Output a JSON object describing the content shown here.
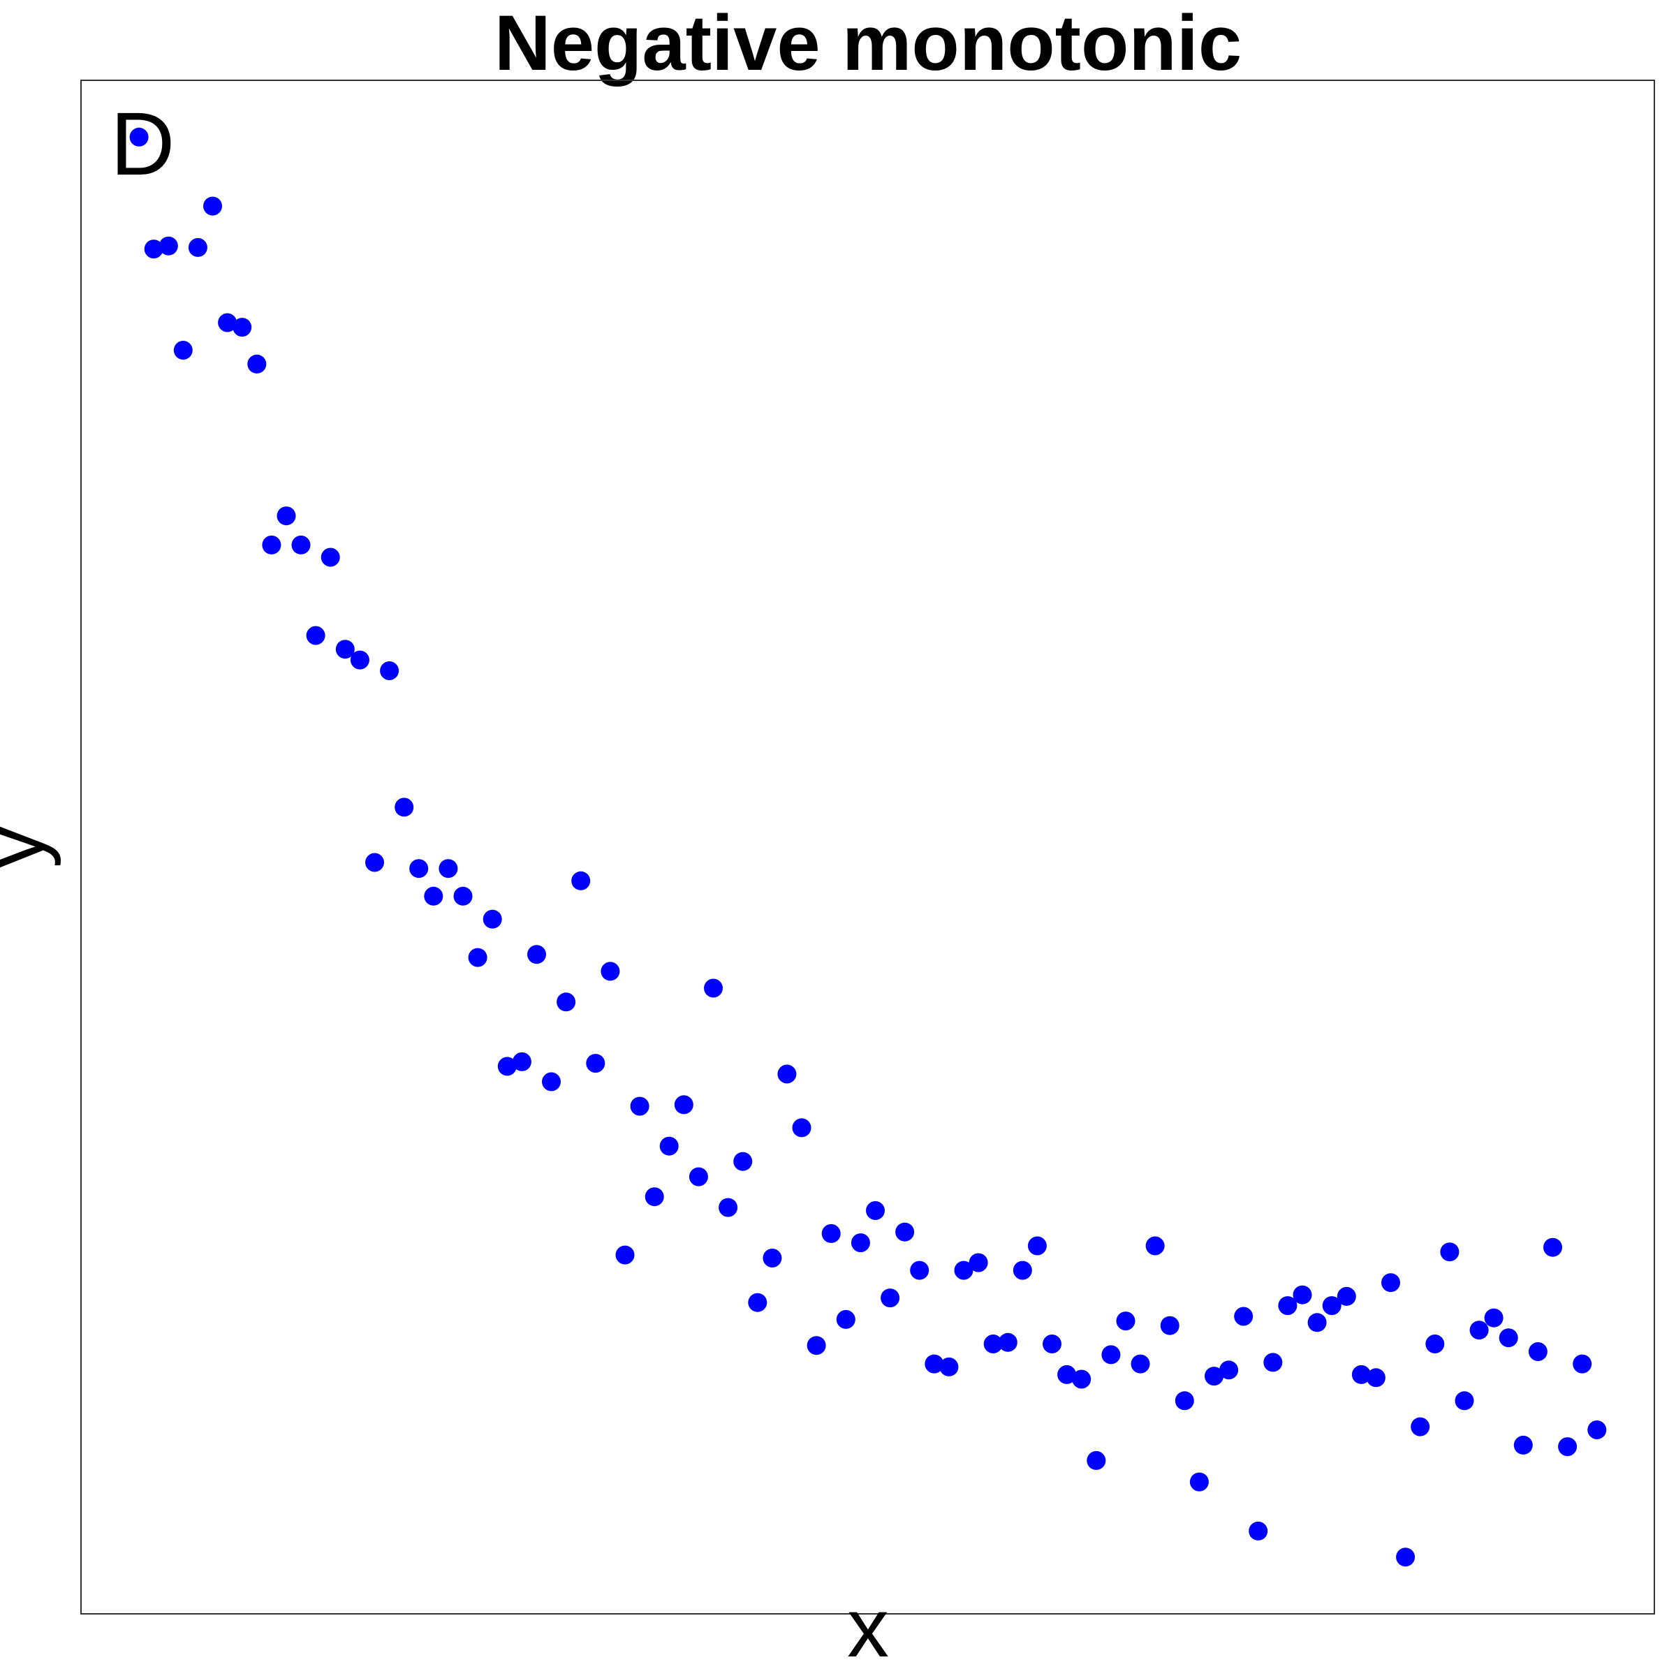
{
  "chart_data": {
    "type": "scatter",
    "title": "Negative monotonic",
    "panel_label": "D",
    "xlabel": "x",
    "ylabel": "y",
    "xlim": [
      -2.94,
      103.9
    ],
    "ylim": [
      0,
      100
    ],
    "grid": false,
    "axis_ticks": false,
    "point_color": "#0000ff",
    "x": [
      1,
      2,
      3,
      4,
      5,
      6,
      7,
      8,
      9,
      10,
      11,
      12,
      13,
      14,
      15,
      16,
      17,
      18,
      19,
      20,
      21,
      22,
      23,
      24,
      25,
      26,
      27,
      28,
      29,
      30,
      31,
      32,
      33,
      34,
      35,
      36,
      37,
      38,
      39,
      40,
      41,
      42,
      43,
      44,
      45,
      46,
      47,
      48,
      49,
      50,
      51,
      52,
      53,
      54,
      55,
      56,
      57,
      58,
      59,
      60,
      61,
      62,
      63,
      64,
      65,
      66,
      67,
      68,
      69,
      70,
      71,
      72,
      73,
      74,
      75,
      76,
      77,
      78,
      79,
      80,
      81,
      82,
      83,
      84,
      85,
      86,
      87,
      88,
      89,
      90,
      91,
      92,
      93,
      94,
      95,
      96,
      97,
      98,
      99,
      100
    ],
    "y": [
      96.3,
      89.0,
      89.2,
      82.4,
      89.1,
      91.8,
      84.2,
      83.9,
      81.5,
      69.7,
      71.6,
      69.7,
      63.8,
      68.9,
      62.9,
      62.2,
      49.0,
      61.5,
      52.6,
      48.6,
      46.8,
      48.6,
      46.8,
      42.8,
      45.3,
      35.7,
      36.0,
      43.0,
      34.7,
      39.9,
      47.8,
      35.9,
      41.9,
      23.4,
      33.1,
      27.2,
      30.5,
      33.2,
      28.5,
      40.8,
      26.5,
      29.5,
      20.3,
      23.2,
      35.2,
      31.7,
      17.5,
      24.8,
      19.2,
      24.2,
      26.3,
      20.6,
      24.9,
      22.4,
      16.3,
      16.1,
      22.4,
      22.9,
      17.6,
      17.7,
      22.4,
      24.0,
      17.6,
      15.6,
      15.3,
      10.0,
      16.9,
      19.1,
      16.3,
      24.0,
      18.8,
      13.9,
      8.6,
      15.5,
      15.9,
      19.4,
      5.4,
      16.4,
      20.1,
      20.8,
      19.0,
      20.1,
      20.7,
      15.6,
      15.4,
      21.6,
      3.7,
      12.2,
      17.6,
      23.6,
      13.9,
      18.5,
      19.3,
      18.0,
      11.0,
      17.1,
      23.9,
      10.9,
      16.3,
      12.0
    ]
  }
}
